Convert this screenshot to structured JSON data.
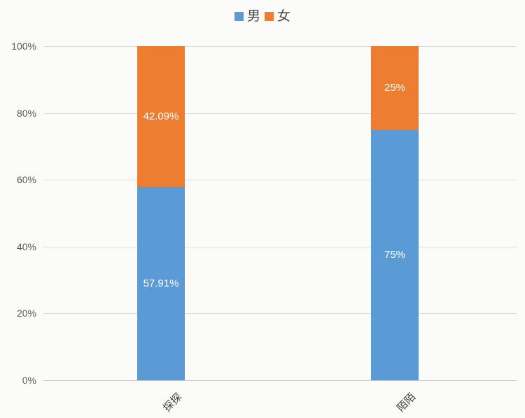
{
  "legend": {
    "position": "top",
    "items": [
      {
        "label": "男",
        "color": "#5B9BD5"
      },
      {
        "label": "女",
        "color": "#ED7D31"
      }
    ]
  },
  "chart_data": {
    "type": "bar",
    "subtype": "100%-stacked-column",
    "title": "",
    "xlabel": "",
    "ylabel": "",
    "categories": [
      "探探",
      "陌陌"
    ],
    "series": [
      {
        "name": "男",
        "color": "#5B9BD5",
        "values": [
          57.91,
          75
        ],
        "labels": [
          "57.91%",
          "75%"
        ]
      },
      {
        "name": "女",
        "color": "#ED7D31",
        "values": [
          42.09,
          25
        ],
        "labels": [
          "42.09%",
          "25%"
        ]
      }
    ],
    "yticks": [
      "0%",
      "20%",
      "40%",
      "60%",
      "80%",
      "100%"
    ],
    "ytick_values": [
      0,
      20,
      40,
      60,
      80,
      100
    ],
    "ylim": [
      0,
      100
    ],
    "grid": true,
    "legend_position": "top",
    "data_label_color": "#FFFFFF"
  },
  "colors": {
    "male": "#5B9BD5",
    "female": "#ED7D31",
    "gridline": "#DCDCDC",
    "axis_line": "#C6C6C6",
    "tick_label": "#595959",
    "category_label": "#3F3F3F",
    "background": "#FBFBFA"
  }
}
